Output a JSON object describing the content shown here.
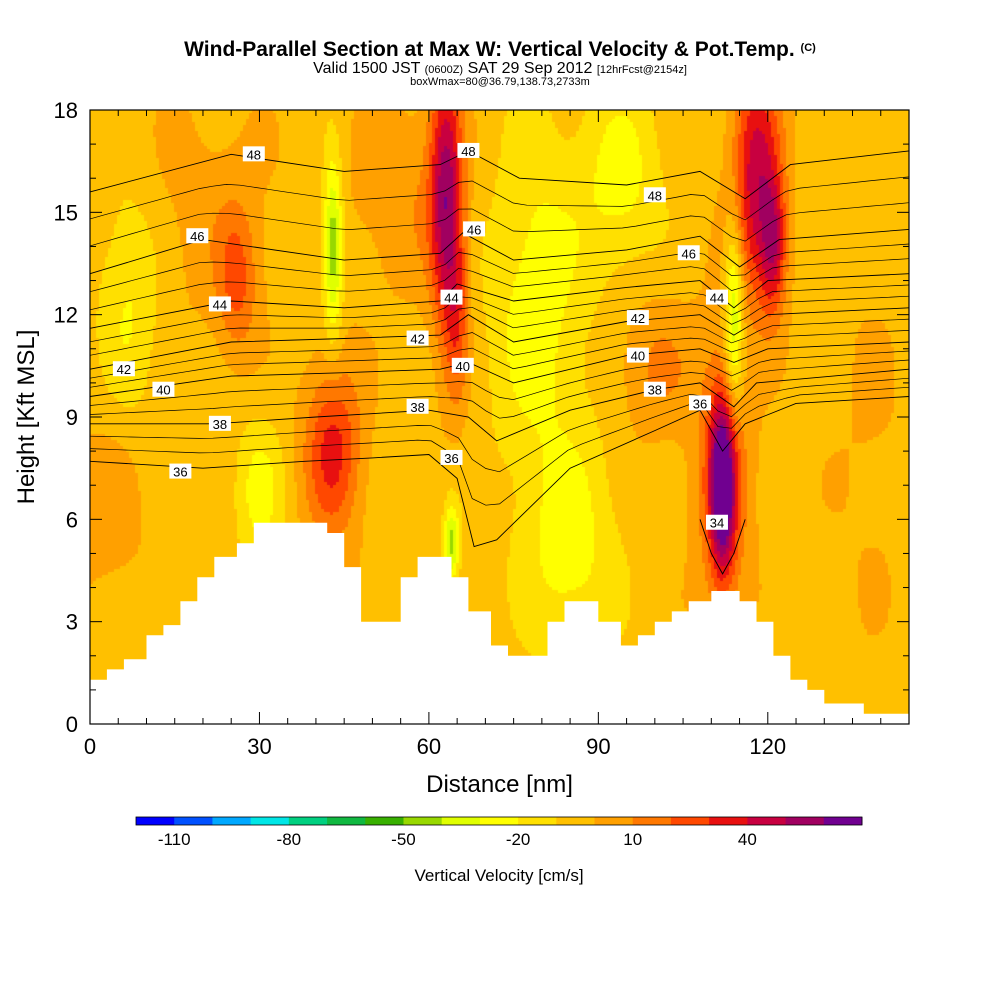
{
  "header": {
    "title_main": "Wind-Parallel Section at Max W: Vertical Velocity & Pot.Temp.",
    "title_mark": "(C)",
    "valid_a": "Valid 1500 JST",
    "valid_small1": "(0600Z)",
    "valid_b": "SAT 29 Sep 2012",
    "valid_small2": "[12hrFcst@2154z]",
    "box_info": "boxWmax=80@36.79,138.73,2733m"
  },
  "chart_data": {
    "type": "heatmap",
    "title": "Wind-Parallel Section at Max W: Vertical Velocity & Pot.Temp.",
    "xlabel": "Distance [nm]",
    "ylabel": "Height [Kft MSL]",
    "xlim": [
      0,
      145
    ],
    "ylim": [
      0,
      18
    ],
    "x_ticks": [
      0,
      30,
      60,
      90,
      120
    ],
    "x_tick_labels": [
      "0",
      "30",
      "60",
      "90",
      "120"
    ],
    "y_ticks": [
      0,
      3,
      6,
      9,
      12,
      15,
      18
    ],
    "y_tick_labels": [
      "0",
      "3",
      "6",
      "9",
      "12",
      "15",
      "18"
    ],
    "colorbar": {
      "label": "Vertical Velocity [cm/s]",
      "levels": [
        -120,
        -110,
        -100,
        -90,
        -80,
        -70,
        -60,
        -50,
        -40,
        -30,
        -20,
        -10,
        0,
        10,
        20,
        30,
        40,
        50,
        60,
        70
      ],
      "colors": [
        "#0000ff",
        "#0050ff",
        "#00a8ff",
        "#00e6e6",
        "#00d080",
        "#10b840",
        "#38b000",
        "#98d800",
        "#e0ff00",
        "#ffff00",
        "#ffe000",
        "#ffc000",
        "#ffa000",
        "#ff7800",
        "#ff4800",
        "#e81010",
        "#c80040",
        "#a00060",
        "#700090"
      ],
      "tick_labels": [
        "-110",
        "-80",
        "-50",
        "-20",
        "10",
        "40"
      ],
      "tick_values": [
        -110,
        -80,
        -50,
        -20,
        10,
        40
      ]
    },
    "terrain": [
      [
        0,
        1.3
      ],
      [
        3,
        1.3
      ],
      [
        3,
        1.6
      ],
      [
        6,
        1.6
      ],
      [
        6,
        1.9
      ],
      [
        10,
        1.9
      ],
      [
        10,
        2.6
      ],
      [
        13,
        2.6
      ],
      [
        13,
        2.9
      ],
      [
        16,
        2.9
      ],
      [
        16,
        3.6
      ],
      [
        19,
        3.6
      ],
      [
        19,
        4.3
      ],
      [
        22,
        4.3
      ],
      [
        22,
        4.9
      ],
      [
        26,
        4.9
      ],
      [
        26,
        5.3
      ],
      [
        29,
        5.3
      ],
      [
        29,
        5.9
      ],
      [
        42,
        5.9
      ],
      [
        42,
        5.6
      ],
      [
        45,
        5.6
      ],
      [
        45,
        4.6
      ],
      [
        48,
        4.6
      ],
      [
        48,
        3.0
      ],
      [
        55,
        3.0
      ],
      [
        55,
        4.3
      ],
      [
        58,
        4.3
      ],
      [
        58,
        4.9
      ],
      [
        64,
        4.9
      ],
      [
        64,
        4.3
      ],
      [
        67,
        4.3
      ],
      [
        67,
        3.3
      ],
      [
        71,
        3.3
      ],
      [
        71,
        2.3
      ],
      [
        74,
        2.3
      ],
      [
        74,
        2.0
      ],
      [
        81,
        2.0
      ],
      [
        81,
        3.0
      ],
      [
        84,
        3.0
      ],
      [
        84,
        3.6
      ],
      [
        90,
        3.6
      ],
      [
        90,
        3.0
      ],
      [
        94,
        3.0
      ],
      [
        94,
        2.3
      ],
      [
        97,
        2.3
      ],
      [
        97,
        2.6
      ],
      [
        100,
        2.6
      ],
      [
        100,
        3.0
      ],
      [
        103,
        3.0
      ],
      [
        103,
        3.3
      ],
      [
        106,
        3.3
      ],
      [
        106,
        3.6
      ],
      [
        110,
        3.6
      ],
      [
        110,
        3.9
      ],
      [
        115,
        3.9
      ],
      [
        115,
        3.6
      ],
      [
        118,
        3.6
      ],
      [
        118,
        3.0
      ],
      [
        121,
        3.0
      ],
      [
        121,
        2.0
      ],
      [
        124,
        2.0
      ],
      [
        124,
        1.3
      ],
      [
        127,
        1.3
      ],
      [
        127,
        1.0
      ],
      [
        130,
        1.0
      ],
      [
        130,
        0.6
      ],
      [
        137,
        0.6
      ],
      [
        137,
        0.3
      ],
      [
        145,
        0.3
      ]
    ],
    "w_blobs": [
      {
        "x": 63,
        "y": 15.5,
        "sx": 2.0,
        "sy": 2.8,
        "w": 55
      },
      {
        "x": 65,
        "y": 12.0,
        "sx": 1.5,
        "sy": 2.0,
        "w": 25
      },
      {
        "x": 118,
        "y": 16.0,
        "sx": 3.0,
        "sy": 2.5,
        "w": 50
      },
      {
        "x": 121,
        "y": 14.0,
        "sx": 1.6,
        "sy": 1.4,
        "w": 40
      },
      {
        "x": 112,
        "y": 7.0,
        "sx": 1.6,
        "sy": 1.8,
        "w": 70
      },
      {
        "x": 112,
        "y": 7.2,
        "sx": 3.5,
        "sy": 3.0,
        "w": 25
      },
      {
        "x": 43,
        "y": 8.0,
        "sx": 3.5,
        "sy": 1.8,
        "w": 38
      },
      {
        "x": 26,
        "y": 13.0,
        "sx": 2.5,
        "sy": 1.5,
        "w": 25
      },
      {
        "x": 20,
        "y": 15.0,
        "sx": 9,
        "sy": 2.5,
        "w": 8
      },
      {
        "x": 100,
        "y": 10.5,
        "sx": 5.0,
        "sy": 1.5,
        "w": 15
      },
      {
        "x": 56,
        "y": 15.5,
        "sx": 7.0,
        "sy": 2.0,
        "w": 12
      },
      {
        "x": 3,
        "y": 6.5,
        "sx": 5.0,
        "sy": 2.0,
        "w": 10
      },
      {
        "x": 43,
        "y": 14.0,
        "sx": 1.2,
        "sy": 1.8,
        "w": -45
      },
      {
        "x": 114,
        "y": 12.0,
        "sx": 1.2,
        "sy": 2.0,
        "w": -42
      },
      {
        "x": 64,
        "y": 5.3,
        "sx": 1.0,
        "sy": 0.8,
        "w": -40
      },
      {
        "x": 79,
        "y": 12.5,
        "sx": 6.0,
        "sy": 3.5,
        "w": -22
      },
      {
        "x": 85,
        "y": 5.0,
        "sx": 6.0,
        "sy": 2.5,
        "w": -20
      },
      {
        "x": 30,
        "y": 6.8,
        "sx": 3.0,
        "sy": 1.5,
        "w": -20
      },
      {
        "x": 7,
        "y": 12.5,
        "sx": 4.0,
        "sy": 2.5,
        "w": -18
      },
      {
        "x": 94,
        "y": 16.0,
        "sx": 5.0,
        "sy": 2.0,
        "w": -20
      },
      {
        "x": 138,
        "y": 8.0,
        "sx": 5.0,
        "sy": 4.0,
        "w": 5
      }
    ],
    "theta_contours": [
      {
        "value": 34,
        "pts": [
          [
            108,
            6.0
          ],
          [
            110,
            5.0
          ],
          [
            112,
            4.4
          ],
          [
            114,
            5.0
          ],
          [
            116,
            6.0
          ]
        ]
      },
      {
        "value": 36,
        "pts": [
          [
            0,
            7.7
          ],
          [
            20,
            7.5
          ],
          [
            38,
            7.7
          ],
          [
            50,
            7.8
          ],
          [
            60,
            7.9
          ],
          [
            65,
            7.2
          ],
          [
            68,
            5.2
          ],
          [
            72,
            5.4
          ],
          [
            85,
            7.5
          ],
          [
            100,
            8.6
          ],
          [
            108,
            9.2
          ],
          [
            112,
            8.0
          ],
          [
            116,
            8.8
          ],
          [
            125,
            9.4
          ],
          [
            145,
            9.6
          ]
        ]
      },
      {
        "value": 38,
        "pts": [
          [
            0,
            8.8
          ],
          [
            22,
            8.8
          ],
          [
            40,
            9.0
          ],
          [
            60,
            9.2
          ],
          [
            67,
            9.0
          ],
          [
            72,
            8.3
          ],
          [
            85,
            9.2
          ],
          [
            100,
            9.8
          ],
          [
            108,
            10.0
          ],
          [
            114,
            9.3
          ],
          [
            118,
            10.0
          ],
          [
            145,
            10.4
          ]
        ]
      },
      {
        "value": 40,
        "pts": [
          [
            0,
            9.6
          ],
          [
            25,
            10.2
          ],
          [
            45,
            10.3
          ],
          [
            62,
            10.4
          ],
          [
            67,
            10.6
          ],
          [
            75,
            10.0
          ],
          [
            95,
            10.8
          ],
          [
            108,
            11.0
          ],
          [
            114,
            10.6
          ],
          [
            120,
            11.0
          ],
          [
            145,
            11.2
          ]
        ]
      },
      {
        "value": 42,
        "pts": [
          [
            0,
            10.4
          ],
          [
            25,
            11.2
          ],
          [
            45,
            11.3
          ],
          [
            62,
            11.4
          ],
          [
            67,
            12.0
          ],
          [
            75,
            11.2
          ],
          [
            95,
            11.8
          ],
          [
            108,
            12.0
          ],
          [
            114,
            11.4
          ],
          [
            120,
            12.0
          ],
          [
            145,
            12.2
          ]
        ]
      },
      {
        "value": 44,
        "pts": [
          [
            0,
            11.6
          ],
          [
            25,
            12.4
          ],
          [
            45,
            12.2
          ],
          [
            62,
            12.4
          ],
          [
            65,
            12.9
          ],
          [
            75,
            12.4
          ],
          [
            95,
            12.8
          ],
          [
            108,
            13.0
          ],
          [
            114,
            12.2
          ],
          [
            120,
            13.0
          ],
          [
            145,
            13.2
          ]
        ]
      },
      {
        "value": 46,
        "pts": [
          [
            0,
            13.2
          ],
          [
            20,
            14.2
          ],
          [
            45,
            13.6
          ],
          [
            62,
            13.8
          ],
          [
            66,
            14.4
          ],
          [
            75,
            13.6
          ],
          [
            95,
            13.9
          ],
          [
            108,
            14.3
          ],
          [
            115,
            13.4
          ],
          [
            122,
            14.2
          ],
          [
            145,
            14.5
          ]
        ]
      },
      {
        "value": 48,
        "pts": [
          [
            0,
            15.6
          ],
          [
            25,
            16.7
          ],
          [
            45,
            16.2
          ],
          [
            62,
            16.4
          ],
          [
            67,
            16.8
          ],
          [
            76,
            16.0
          ],
          [
            95,
            15.8
          ],
          [
            108,
            16.2
          ],
          [
            116,
            15.4
          ],
          [
            124,
            16.4
          ],
          [
            145,
            16.8
          ]
        ]
      }
    ],
    "contour_labels": [
      {
        "text": "48",
        "x": 29,
        "y": 16.7
      },
      {
        "text": "48",
        "x": 67,
        "y": 16.8
      },
      {
        "text": "48",
        "x": 100,
        "y": 15.5
      },
      {
        "text": "46",
        "x": 19,
        "y": 14.3
      },
      {
        "text": "46",
        "x": 68,
        "y": 14.5
      },
      {
        "text": "46",
        "x": 106,
        "y": 13.8
      },
      {
        "text": "44",
        "x": 23,
        "y": 12.3
      },
      {
        "text": "44",
        "x": 64,
        "y": 12.5
      },
      {
        "text": "44",
        "x": 111,
        "y": 12.5
      },
      {
        "text": "42",
        "x": 6,
        "y": 10.4
      },
      {
        "text": "42",
        "x": 58,
        "y": 11.3
      },
      {
        "text": "42",
        "x": 97,
        "y": 11.9
      },
      {
        "text": "40",
        "x": 13,
        "y": 9.8
      },
      {
        "text": "40",
        "x": 66,
        "y": 10.5
      },
      {
        "text": "40",
        "x": 97,
        "y": 10.8
      },
      {
        "text": "38",
        "x": 23,
        "y": 8.8
      },
      {
        "text": "38",
        "x": 58,
        "y": 9.3
      },
      {
        "text": "38",
        "x": 100,
        "y": 9.8
      },
      {
        "text": "36",
        "x": 16,
        "y": 7.4
      },
      {
        "text": "36",
        "x": 64,
        "y": 7.8
      },
      {
        "text": "36",
        "x": 108,
        "y": 9.4
      },
      {
        "text": "34",
        "x": 111,
        "y": 5.9
      }
    ]
  }
}
